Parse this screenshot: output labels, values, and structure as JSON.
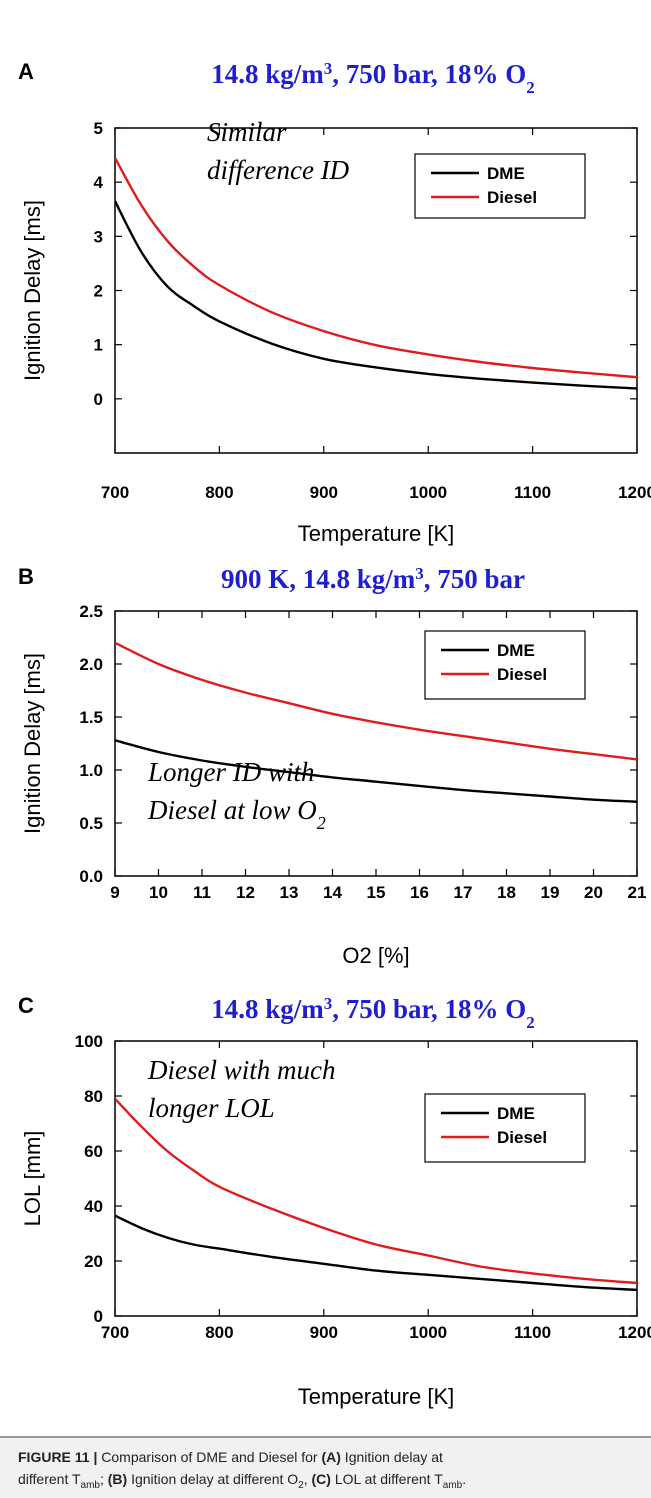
{
  "chart_data": [
    {
      "type": "line",
      "panel": "A",
      "title": "14.8 kg/m³, 750 bar, 18% O₂",
      "xlabel": "Temperature [K]",
      "ylabel": "Ignition Delay [ms]",
      "xlim": [
        700,
        1200
      ],
      "ylim": [
        -1,
        5
      ],
      "xticks": [
        "700",
        "800",
        "900",
        "1000",
        "1100",
        "1200"
      ],
      "yticks": [
        "0",
        "1",
        "2",
        "3",
        "4",
        "5"
      ],
      "legend": {
        "position": "top-right",
        "entries": [
          "DME",
          "Diesel"
        ]
      },
      "annotation": [
        "Similar",
        "difference ID"
      ],
      "x": [
        700,
        725,
        750,
        775,
        800,
        850,
        900,
        950,
        1000,
        1050,
        1100,
        1150,
        1200
      ],
      "series": [
        {
          "name": "DME",
          "color": "#000000",
          "values": [
            3.65,
            2.72,
            2.08,
            1.72,
            1.43,
            1.02,
            0.74,
            0.58,
            0.46,
            0.37,
            0.3,
            0.24,
            0.19
          ]
        },
        {
          "name": "Diesel",
          "color": "#e01b1b",
          "values": [
            4.45,
            3.58,
            2.92,
            2.45,
            2.1,
            1.6,
            1.25,
            0.99,
            0.82,
            0.68,
            0.57,
            0.48,
            0.4
          ]
        }
      ]
    },
    {
      "type": "line",
      "panel": "B",
      "title": "900 K, 14.8 kg/m³, 750 bar",
      "xlabel": "O2 [%]",
      "ylabel": "Ignition Delay [ms]",
      "xlim": [
        9,
        21
      ],
      "ylim": [
        0,
        2.5
      ],
      "xticks": [
        "9",
        "10",
        "11",
        "12",
        "13",
        "14",
        "15",
        "16",
        "17",
        "18",
        "19",
        "20",
        "21"
      ],
      "yticks": [
        "0.0",
        "0.5",
        "1.0",
        "1.5",
        "2.0",
        "2.5"
      ],
      "legend": {
        "position": "top-right",
        "entries": [
          "DME",
          "Diesel"
        ]
      },
      "annotation": [
        "Longer ID with",
        "Diesel at low O₂"
      ],
      "x": [
        9,
        10,
        11,
        12,
        13,
        14,
        15,
        16,
        17,
        18,
        19,
        20,
        21
      ],
      "series": [
        {
          "name": "DME",
          "color": "#000000",
          "values": [
            1.28,
            1.17,
            1.09,
            1.03,
            0.98,
            0.93,
            0.89,
            0.85,
            0.81,
            0.78,
            0.75,
            0.72,
            0.7
          ]
        },
        {
          "name": "Diesel",
          "color": "#e01b1b",
          "values": [
            2.2,
            2.0,
            1.85,
            1.73,
            1.63,
            1.53,
            1.45,
            1.38,
            1.32,
            1.26,
            1.2,
            1.15,
            1.1
          ]
        }
      ]
    },
    {
      "type": "line",
      "panel": "C",
      "title": "14.8 kg/m³, 750 bar, 18% O₂",
      "xlabel": "Temperature [K]",
      "ylabel": "LOL [mm]",
      "xlim": [
        700,
        1200
      ],
      "ylim": [
        0,
        100
      ],
      "xticks": [
        "700",
        "800",
        "900",
        "1000",
        "1100",
        "1200"
      ],
      "yticks": [
        "0",
        "20",
        "40",
        "60",
        "80",
        "100"
      ],
      "legend": {
        "position": "top-right",
        "entries": [
          "DME",
          "Diesel"
        ]
      },
      "annotation": [
        "Diesel with much",
        "longer LOL"
      ],
      "x": [
        700,
        725,
        750,
        775,
        800,
        850,
        900,
        950,
        1000,
        1050,
        1100,
        1150,
        1200
      ],
      "series": [
        {
          "name": "DME",
          "color": "#000000",
          "values": [
            36.5,
            32.0,
            28.5,
            26.0,
            24.5,
            21.5,
            19.0,
            16.5,
            15.0,
            13.5,
            12.0,
            10.5,
            9.5
          ]
        },
        {
          "name": "Diesel",
          "color": "#e01b1b",
          "values": [
            79.0,
            69.0,
            60.0,
            53.0,
            47.0,
            39.0,
            32.0,
            26.0,
            22.0,
            18.0,
            15.5,
            13.5,
            12.0
          ]
        }
      ]
    }
  ],
  "caption": {
    "label": "FIGURE 11 |",
    "text_1": " Comparison of DME and Diesel for ",
    "a_label": "(A)",
    "text_2": " Ignition delay at",
    "text_3": "different T",
    "sub_amb_1": "amb",
    "text_4": "; ",
    "b_label": "(B)",
    "text_5": " Ignition delay at different O",
    "sub_o2": "2",
    "text_6": ", ",
    "c_label": "(C)",
    "text_7": " LOL at different T",
    "sub_amb_2": "amb",
    "text_8": "."
  }
}
